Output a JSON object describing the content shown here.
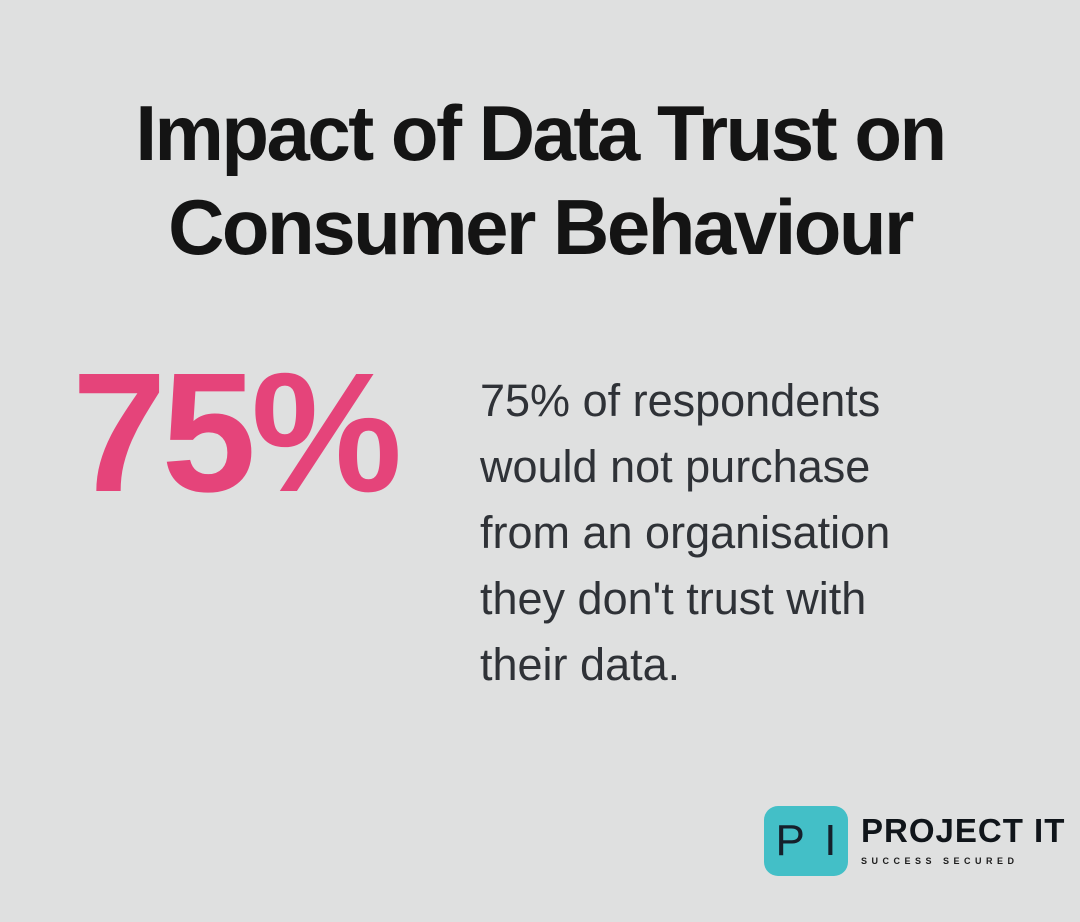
{
  "page": {
    "background_color": "#dfe0e0"
  },
  "title": {
    "line1": "Impact of Data Trust on",
    "line2": "Consumer Behaviour",
    "color": "#141414"
  },
  "stat": {
    "value": "75%",
    "value_color": "#e5447a",
    "description": "75% of respondents would not purchase from an organisation they don't trust with their data.",
    "description_color": "#2f3237"
  },
  "logo": {
    "monogram": "P I",
    "monogram_square_color": "#43bfc7",
    "monogram_text_color": "#15202b",
    "name": "PROJECT IT",
    "tagline": "SUCCESS SECURED"
  }
}
